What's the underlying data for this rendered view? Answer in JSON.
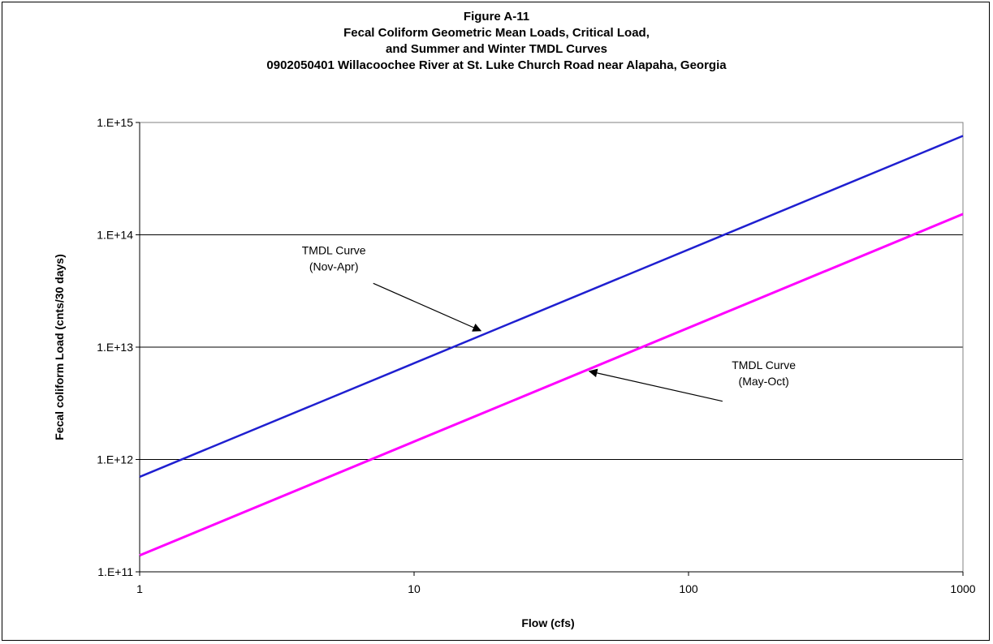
{
  "chart_data": {
    "type": "line",
    "title_lines": [
      "Figure A-11",
      "Fecal Coliform Geometric Mean Loads,  Critical Load,",
      "and Summer and Winter TMDL Curves",
      "0902050401 Willacoochee River at St. Luke Church Road near Alapaha, Georgia"
    ],
    "xlabel": "Flow    (cfs)",
    "ylabel": "Fecal coliform Load  (cnts/30 days)",
    "x_scale": "log",
    "y_scale": "log",
    "xlim": [
      1,
      1000
    ],
    "ylim": [
      100000000000.0,
      1000000000000000.0
    ],
    "x_ticks": [
      {
        "value": 1,
        "label": "1"
      },
      {
        "value": 10,
        "label": "10"
      },
      {
        "value": 100,
        "label": "100"
      },
      {
        "value": 1000,
        "label": "1000"
      }
    ],
    "y_ticks": [
      {
        "value": 100000000000.0,
        "label": "1.E+11"
      },
      {
        "value": 1000000000000.0,
        "label": "1.E+12"
      },
      {
        "value": 10000000000000.0,
        "label": "1.E+13"
      },
      {
        "value": 100000000000000.0,
        "label": "1.E+14"
      },
      {
        "value": 1000000000000000.0,
        "label": "1.E+15"
      }
    ],
    "grid": "horizontal",
    "series": [
      {
        "color": "#1f1fd0",
        "x": [
          1,
          1000
        ],
        "y": [
          700000000000.0,
          760000000000000.0
        ]
      },
      {
        "color": "#ff00ff",
        "x": [
          1,
          1000
        ],
        "y": [
          140000000000.0,
          153000000000000.0
        ]
      }
    ],
    "annotations": [
      {
        "lines": [
          "TMDL Curve",
          "(Nov-Apr)"
        ],
        "text_at": [
          5.1,
          67000000000000.0
        ],
        "arrow_from": [
          7.1,
          37000000000000.0
        ],
        "arrow_to": [
          17.5,
          14000000000000.0
        ]
      },
      {
        "lines": [
          "TMDL Curve",
          "(May-Oct)"
        ],
        "text_at": [
          188,
          6400000000000.0
        ],
        "arrow_from": [
          133,
          3300000000000.0
        ],
        "arrow_to": [
          43.5,
          6100000000000.0
        ]
      }
    ]
  }
}
